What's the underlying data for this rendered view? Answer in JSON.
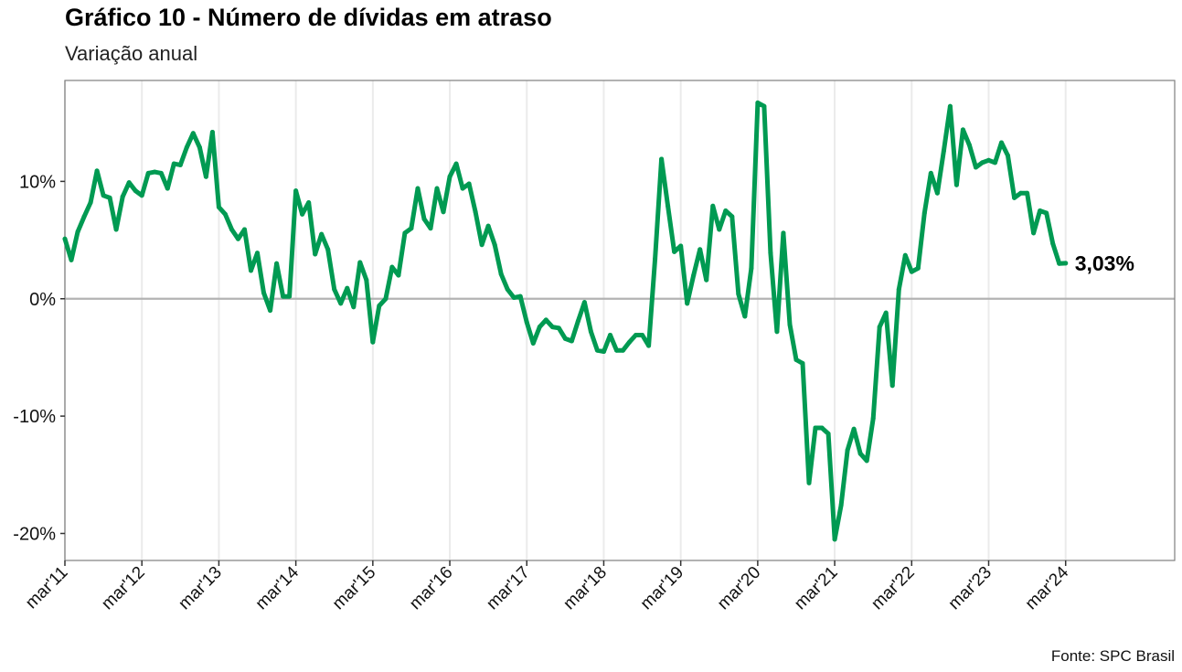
{
  "chart_data": {
    "type": "line",
    "title": "Gráfico 10 - Número de dívidas em atraso",
    "subtitle": "Variação anual",
    "source": "Fonte: SPC Brasil",
    "xlabel": "",
    "ylabel": "",
    "start_month": "mar'11",
    "frequency": "monthly",
    "x_tick_labels": [
      "mar'11",
      "mar'12",
      "mar'13",
      "mar'14",
      "mar'15",
      "mar'16",
      "mar'17",
      "mar'18",
      "mar'19",
      "mar'20",
      "mar'21",
      "mar'22",
      "mar'23",
      "mar'24"
    ],
    "y_ticks": [
      10,
      0,
      -10,
      -20
    ],
    "y_tick_labels": [
      "10%",
      "0%",
      "-10%",
      "-20%"
    ],
    "ylim": [
      -22.3,
      18.6
    ],
    "x_months_span": 173,
    "grid": "vertical at x ticks",
    "line_color": "#009A52",
    "last_label": "3,03%",
    "series": [
      {
        "name": "Variação anual",
        "values": [
          5.1,
          3.3,
          5.7,
          7.0,
          8.2,
          10.9,
          8.8,
          8.6,
          5.9,
          8.7,
          9.9,
          9.2,
          8.8,
          10.7,
          10.8,
          10.7,
          9.4,
          11.5,
          11.4,
          12.9,
          14.1,
          12.9,
          10.4,
          14.2,
          7.8,
          7.2,
          5.9,
          5.1,
          5.9,
          2.4,
          3.9,
          0.5,
          -1.0,
          3.0,
          0.2,
          0.2,
          9.2,
          7.2,
          8.2,
          3.8,
          5.5,
          4.2,
          0.8,
          -0.4,
          0.9,
          -0.7,
          3.1,
          1.6,
          -3.7,
          -0.6,
          0.0,
          2.7,
          2.0,
          5.6,
          6.0,
          9.4,
          6.8,
          6.0,
          9.4,
          7.4,
          10.4,
          11.5,
          9.4,
          9.8,
          7.4,
          4.6,
          6.2,
          4.6,
          2.1,
          0.8,
          0.1,
          0.2,
          -2.0,
          -3.8,
          -2.4,
          -1.8,
          -2.4,
          -2.5,
          -3.4,
          -3.6,
          -1.9,
          -0.3,
          -2.8,
          -4.4,
          -4.5,
          -3.1,
          -4.4,
          -4.4,
          -3.7,
          -3.1,
          -3.1,
          -4.0,
          3.4,
          11.9,
          7.9,
          4.0,
          4.5,
          -0.4,
          2.0,
          4.2,
          1.6,
          7.9,
          5.9,
          7.5,
          7.0,
          0.4,
          -1.5,
          2.6,
          16.7,
          16.4,
          3.9,
          -2.8,
          5.6,
          -2.2,
          -5.2,
          -5.5,
          -15.7,
          -11.0,
          -11.0,
          -11.5,
          -20.5,
          -17.6,
          -12.9,
          -11.1,
          -13.2,
          -13.8,
          -10.2,
          -2.4,
          -1.2,
          -7.4,
          0.8,
          3.7,
          2.3,
          2.6,
          7.3,
          10.7,
          9.0,
          12.6,
          16.4,
          9.7,
          14.4,
          13.1,
          11.2,
          11.6,
          11.8,
          11.6,
          13.3,
          12.2,
          8.6,
          9.0,
          9.0,
          5.6,
          7.5,
          7.3,
          4.7,
          3.0,
          3.03
        ]
      }
    ]
  }
}
